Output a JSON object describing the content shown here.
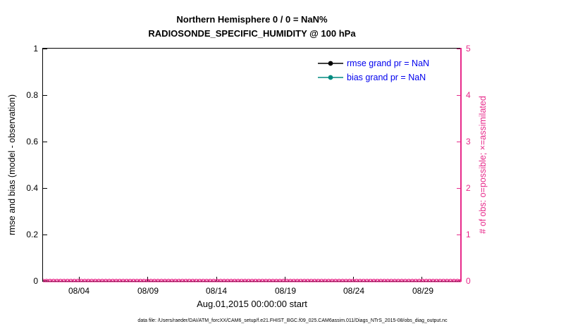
{
  "title_line1": "Northern Hemisphere 0 / 0 = NaN%",
  "title_line2": "RADIOSONDE_SPECIFIC_HUMIDITY @ 100 hPa",
  "left_axis": {
    "label": "rmse and bias (model - observation)",
    "ticks": [
      "0",
      "0.2",
      "0.4",
      "0.6",
      "0.8",
      "1"
    ]
  },
  "right_axis": {
    "label": "# of obs: o=possible; ×=assimilated",
    "ticks": [
      "0",
      "1",
      "2",
      "3",
      "4",
      "5"
    ],
    "color": "#E7298A"
  },
  "x_axis": {
    "label": "Aug.01,2015 00:00:00 start",
    "ticks": [
      "08/04",
      "08/09",
      "08/14",
      "08/19",
      "08/24",
      "08/29"
    ]
  },
  "legend": [
    {
      "label": "rmse grand pr = NaN",
      "line_color": "#000000"
    },
    {
      "label": "bias grand pr = NaN",
      "line_color": "#008B80"
    }
  ],
  "legend_text_color": "#0000EE",
  "caption": "data file: /Users/raeder/DAI/ATM_forcXX/CAM6_setup/f.e21.FHIST_BGC.f09_025.CAM6assim.011/Diags_NTrS_2015-08/obs_diag_output.nc",
  "chart_data": {
    "type": "line",
    "title": "Northern Hemisphere 0 / 0 = NaN% — RADIOSONDE_SPECIFIC_HUMIDITY @ 100 hPa",
    "xlabel": "Aug.01,2015 00:00:00 start",
    "x_tick_labels": [
      "08/04",
      "08/09",
      "08/14",
      "08/19",
      "08/24",
      "08/29"
    ],
    "x_range": [
      "2015-08-01",
      "2015-08-31"
    ],
    "left_axis": {
      "label": "rmse and bias (model - observation)",
      "ylim": [
        0,
        1
      ],
      "ticks": [
        0,
        0.2,
        0.4,
        0.6,
        0.8,
        1
      ]
    },
    "right_axis": {
      "label": "# of obs: o=possible; ×=assimilated",
      "ylim": [
        0,
        5
      ],
      "ticks": [
        0,
        1,
        2,
        3,
        4,
        5
      ]
    },
    "series": [
      {
        "name": "rmse grand pr = NaN",
        "axis": "left",
        "values": "all NaN - no line drawn"
      },
      {
        "name": "bias grand pr = NaN",
        "axis": "left",
        "values": "all NaN - no line drawn"
      },
      {
        "name": "possible obs (o)",
        "axis": "right",
        "constant_value": 0
      },
      {
        "name": "assimilated obs (×)",
        "axis": "right",
        "constant_value": 0
      }
    ],
    "obs_marker_row": {
      "symbols": [
        "o",
        "×"
      ],
      "count": 120,
      "y_value": 0
    },
    "legend_position": "top-right inside",
    "grid": false
  }
}
